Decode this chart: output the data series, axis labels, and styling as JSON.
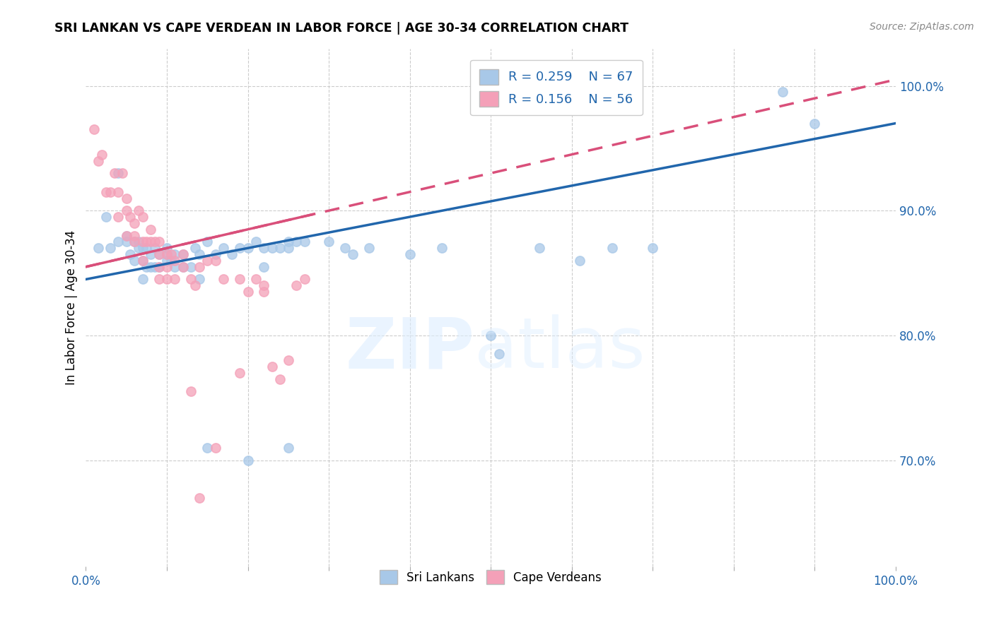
{
  "title": "SRI LANKAN VS CAPE VERDEAN IN LABOR FORCE | AGE 30-34 CORRELATION CHART",
  "source": "Source: ZipAtlas.com",
  "ylabel": "In Labor Force | Age 30-34",
  "xlim": [
    0.0,
    1.0
  ],
  "ylim": [
    0.615,
    1.03
  ],
  "y_ticks_right": [
    0.7,
    0.8,
    0.9,
    1.0
  ],
  "y_tick_labels_right": [
    "70.0%",
    "80.0%",
    "90.0%",
    "100.0%"
  ],
  "blue_R": 0.259,
  "blue_N": 67,
  "pink_R": 0.156,
  "pink_N": 56,
  "blue_color": "#a8c8e8",
  "pink_color": "#f4a0b8",
  "blue_line_color": "#2166ac",
  "pink_line_color": "#d94f7a",
  "blue_scatter_x": [
    0.015,
    0.025,
    0.03,
    0.04,
    0.04,
    0.05,
    0.05,
    0.055,
    0.06,
    0.06,
    0.065,
    0.065,
    0.07,
    0.07,
    0.07,
    0.075,
    0.075,
    0.08,
    0.08,
    0.085,
    0.085,
    0.09,
    0.09,
    0.1,
    0.1,
    0.1,
    0.105,
    0.11,
    0.11,
    0.12,
    0.12,
    0.13,
    0.135,
    0.14,
    0.15,
    0.16,
    0.17,
    0.18,
    0.19,
    0.2,
    0.21,
    0.22,
    0.23,
    0.24,
    0.25,
    0.25,
    0.26,
    0.27,
    0.3,
    0.32,
    0.33,
    0.35,
    0.4,
    0.44,
    0.5,
    0.51,
    0.56,
    0.61,
    0.15,
    0.2,
    0.25,
    0.65,
    0.7,
    0.86,
    0.9,
    0.14,
    0.22
  ],
  "blue_scatter_y": [
    0.87,
    0.895,
    0.87,
    0.93,
    0.875,
    0.875,
    0.88,
    0.865,
    0.86,
    0.875,
    0.87,
    0.875,
    0.845,
    0.86,
    0.87,
    0.855,
    0.87,
    0.855,
    0.865,
    0.855,
    0.87,
    0.855,
    0.865,
    0.86,
    0.865,
    0.87,
    0.86,
    0.855,
    0.865,
    0.855,
    0.865,
    0.855,
    0.87,
    0.865,
    0.875,
    0.865,
    0.87,
    0.865,
    0.87,
    0.87,
    0.875,
    0.87,
    0.87,
    0.87,
    0.875,
    0.87,
    0.875,
    0.875,
    0.875,
    0.87,
    0.865,
    0.87,
    0.865,
    0.87,
    0.8,
    0.785,
    0.87,
    0.86,
    0.71,
    0.7,
    0.71,
    0.87,
    0.87,
    0.995,
    0.97,
    0.845,
    0.855
  ],
  "pink_scatter_x": [
    0.01,
    0.015,
    0.02,
    0.025,
    0.03,
    0.035,
    0.04,
    0.04,
    0.045,
    0.05,
    0.05,
    0.05,
    0.055,
    0.06,
    0.06,
    0.06,
    0.065,
    0.07,
    0.07,
    0.07,
    0.075,
    0.08,
    0.08,
    0.085,
    0.09,
    0.09,
    0.09,
    0.09,
    0.1,
    0.1,
    0.1,
    0.105,
    0.11,
    0.11,
    0.12,
    0.12,
    0.13,
    0.135,
    0.14,
    0.15,
    0.16,
    0.17,
    0.19,
    0.2,
    0.21,
    0.22,
    0.23,
    0.25,
    0.27,
    0.13,
    0.14,
    0.16,
    0.19,
    0.22,
    0.24,
    0.26
  ],
  "pink_scatter_y": [
    0.965,
    0.94,
    0.945,
    0.915,
    0.915,
    0.93,
    0.915,
    0.895,
    0.93,
    0.91,
    0.9,
    0.88,
    0.895,
    0.89,
    0.88,
    0.875,
    0.9,
    0.895,
    0.875,
    0.86,
    0.875,
    0.885,
    0.875,
    0.875,
    0.875,
    0.865,
    0.855,
    0.845,
    0.865,
    0.855,
    0.845,
    0.865,
    0.86,
    0.845,
    0.865,
    0.855,
    0.845,
    0.84,
    0.855,
    0.86,
    0.86,
    0.845,
    0.845,
    0.835,
    0.845,
    0.835,
    0.775,
    0.78,
    0.845,
    0.755,
    0.67,
    0.71,
    0.77,
    0.84,
    0.765,
    0.84
  ],
  "blue_line_x0": 0.0,
  "blue_line_y0": 0.845,
  "blue_line_x1": 1.0,
  "blue_line_y1": 0.97,
  "pink_line_x0": 0.0,
  "pink_line_y0": 0.855,
  "pink_line_x1": 1.0,
  "pink_line_y1": 1.005
}
